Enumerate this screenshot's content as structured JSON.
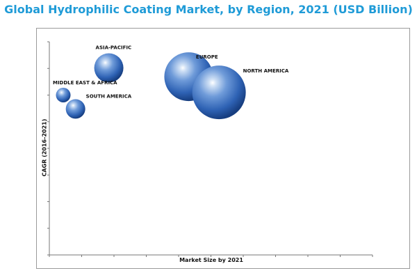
{
  "chart_data": {
    "type": "scatter",
    "title": "Global Hydrophilic Coating Market, by Region, 2021 (USD Billion)",
    "xlabel": "Market Size by 2021",
    "ylabel": "CAGR (2016-2021)",
    "xlim": [
      0,
      10
    ],
    "ylim": [
      0,
      8
    ],
    "grid": false,
    "bubble_color": "#2e62b4",
    "points": [
      {
        "label": "ASIA-PACIFIC",
        "x": 1.84,
        "y": 7.02,
        "size": 3.0
      },
      {
        "label": "EUROPE",
        "x": 4.31,
        "y": 6.69,
        "size": 5.0
      },
      {
        "label": "NORTH AMERICA",
        "x": 5.25,
        "y": 6.1,
        "size": 5.5
      },
      {
        "label": "MIDDLE EAST & AFRICA",
        "x": 0.43,
        "y": 6.0,
        "size": 1.5
      },
      {
        "label": "SOUTH AMERICA",
        "x": 0.81,
        "y": 5.48,
        "size": 2.0
      }
    ]
  }
}
